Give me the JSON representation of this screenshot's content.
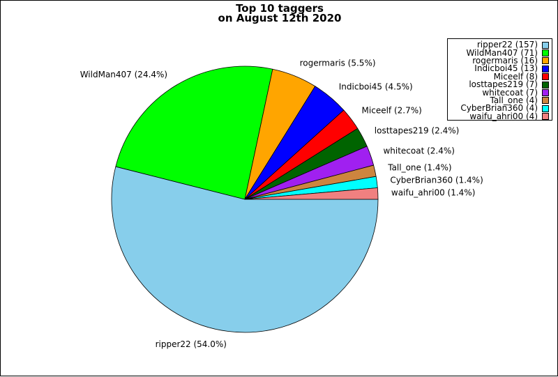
{
  "chart_data": {
    "type": "pie",
    "title_lines": [
      "Top 10 taggers",
      "on August 12th 2020"
    ],
    "legend_position": "top-right",
    "slices": [
      {
        "name": "ripper22",
        "value": 157,
        "percent_label": "54.0%",
        "legend_label": "ripper22 (157)",
        "slice_label": "ripper22 (54.0%)",
        "color": "#87CEEB"
      },
      {
        "name": "WildMan407",
        "value": 71,
        "percent_label": "24.4%",
        "legend_label": "WildMan407 (71)",
        "slice_label": "WildMan407 (24.4%)",
        "color": "#00FF00"
      },
      {
        "name": "rogermaris",
        "value": 16,
        "percent_label": "5.5%",
        "legend_label": "rogermaris (16)",
        "slice_label": "rogermaris (5.5%)",
        "color": "#FFA500"
      },
      {
        "name": "Indicboi45",
        "value": 13,
        "percent_label": "4.5%",
        "legend_label": "Indicboi45 (13)",
        "slice_label": "Indicboi45 (4.5%)",
        "color": "#0000FF"
      },
      {
        "name": "Miceelf",
        "value": 8,
        "percent_label": "2.7%",
        "legend_label": "Miceelf (8)",
        "slice_label": "Miceelf (2.7%)",
        "color": "#FF0000"
      },
      {
        "name": "losttapes219",
        "value": 7,
        "percent_label": "2.4%",
        "legend_label": "losttapes219 (7)",
        "slice_label": "losttapes219 (2.4%)",
        "color": "#006400"
      },
      {
        "name": "whitecoat",
        "value": 7,
        "percent_label": "2.4%",
        "legend_label": "whitecoat (7)",
        "slice_label": "whitecoat (2.4%)",
        "color": "#A020F0"
      },
      {
        "name": "Tall_one",
        "value": 4,
        "percent_label": "1.4%",
        "legend_label": "Tall_one (4)",
        "slice_label": "Tall_one (1.4%)",
        "color": "#CD853F"
      },
      {
        "name": "CyberBrian360",
        "value": 4,
        "percent_label": "1.4%",
        "legend_label": "CyberBrian360 (4)",
        "slice_label": "CyberBrian360 (1.4%)",
        "color": "#00FFFF"
      },
      {
        "name": "waifu_ahri00",
        "value": 4,
        "percent_label": "1.4%",
        "legend_label": "waifu_ahri00 (4)",
        "slice_label": "waifu_ahri00 (1.4%)",
        "color": "#F08080"
      }
    ]
  }
}
